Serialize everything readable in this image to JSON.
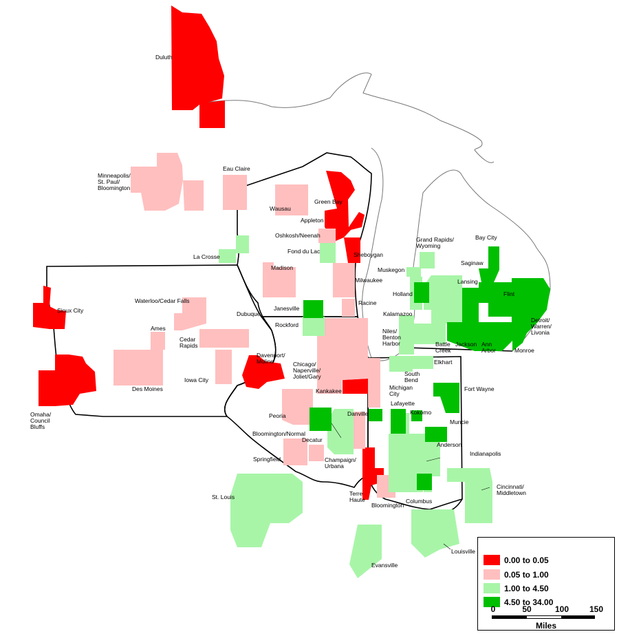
{
  "colors": {
    "class1": "#ff0000",
    "class2": "#ffbfbf",
    "class3": "#a8f5a8",
    "class4": "#00bf00",
    "outline": "#000000"
  },
  "legend": {
    "items": [
      {
        "label": "0.00 to 0.05",
        "color": "#ff0000"
      },
      {
        "label": "0.05 to 1.00",
        "color": "#ffbfbf"
      },
      {
        "label": "1.00 to 4.50",
        "color": "#a8f5a8"
      },
      {
        "label": "4.50 to 34.00",
        "color": "#00bf00"
      }
    ],
    "scale_ticks": [
      "0",
      "50",
      "100",
      "150"
    ],
    "scale_unit": "Miles"
  },
  "labels": {
    "duluth": "Duluth",
    "minneapolis": [
      "Minneapolis/",
      "St. Paul/",
      "Bloomington"
    ],
    "eau_claire": "Eau Claire",
    "wausau": "Wausau",
    "green_bay": "Green Bay",
    "appleton": "Appleton",
    "oshkosh": "Oshkosh/Neenah",
    "fond_du_lac": "Fond du Lac",
    "sheboygan": "Sheboygan",
    "la_crosse": "La Crosse",
    "madison": "Madison",
    "milwaukee": "Milwaukee",
    "racine": "Racine",
    "janesville": "Janesville",
    "rockford": "Rockford",
    "sioux_city": "Sioux City",
    "waterloo": "Waterloo/Cedar Falls",
    "dubuque": "Dubuque",
    "ames": "Ames",
    "cedar_rapids": [
      "Cedar",
      "Rapids"
    ],
    "iowa_city": "Iowa City",
    "des_moines": "Des Moines",
    "omaha": [
      "Omaha/",
      "Council",
      "Bluffs"
    ],
    "davenport": [
      "Davenport/",
      "Moline"
    ],
    "chicago": [
      "Chicago/",
      "Naperville/",
      "Joliet/Gary"
    ],
    "kankakee": "Kankakee",
    "peoria": "Peoria",
    "bloomington_normal": "Bloomington/Normal",
    "danville": "Danville",
    "decatur": "Decatur",
    "springfield": "Springfield",
    "champaign": [
      "Champaign/",
      "Urbana"
    ],
    "st_louis": "St. Louis",
    "terre_haute": [
      "Terre",
      "Haute"
    ],
    "bloomington_in": "Bloomington",
    "columbus": "Columbus",
    "evansville": "Evansville",
    "louisville": "Louisville",
    "cincinnati": [
      "Cincinnati/",
      "Middletown"
    ],
    "indianapolis": "Indianapolis",
    "anderson": "Anderson",
    "muncie": "Muncie",
    "kokomo": "Kokomo",
    "lafayette": "Lafayette",
    "fort_wayne": "Fort Wayne",
    "michigan_city": [
      "Michigan",
      "City"
    ],
    "south_bend": [
      "South",
      "Bend"
    ],
    "elkhart": "Elkhart",
    "niles": [
      "Niles/",
      "Benton",
      "Harbor"
    ],
    "kalamazoo": "Kalamazoo",
    "battle_creek": [
      "Battle",
      "Creek"
    ],
    "jackson": "Jackson",
    "ann_arbor": [
      "Ann",
      "Arbor"
    ],
    "monroe": "Monroe",
    "detroit": [
      "Detroit/",
      "Warren/",
      "Livonia"
    ],
    "flint": "Flint",
    "lansing": "Lansing",
    "saginaw": "Saginaw",
    "bay_city": "Bay City",
    "holland": "Holland",
    "muskegon": "Muskegon",
    "grand_rapids": [
      "Grand Rapids/",
      "Wyoming"
    ]
  }
}
